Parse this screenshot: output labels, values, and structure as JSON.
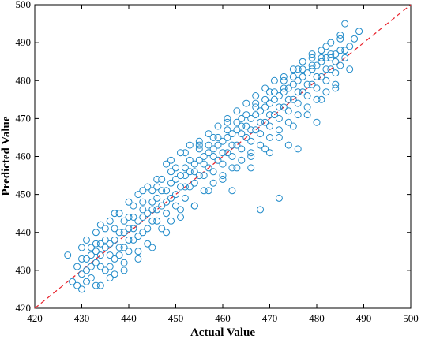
{
  "chart_data": {
    "type": "scatter",
    "xlabel": "Actual Value",
    "ylabel": "Predicted Value",
    "xlim": [
      420,
      500
    ],
    "ylim": [
      420,
      500
    ],
    "x_ticks": [
      420,
      430,
      440,
      450,
      460,
      470,
      480,
      490,
      500
    ],
    "y_ticks": [
      420,
      430,
      440,
      450,
      460,
      470,
      480,
      490,
      500
    ],
    "grid": false,
    "legend": "none",
    "reference_line": {
      "from": [
        420,
        420
      ],
      "to": [
        500,
        500
      ],
      "style": "dashed",
      "color": "#e8202a"
    },
    "marker": {
      "shape": "open-circle",
      "color": "#1f8ac9"
    },
    "series": [
      {
        "points": [
          [
            427,
            434
          ],
          [
            428,
            427
          ],
          [
            429,
            426
          ],
          [
            430,
            433
          ],
          [
            430,
            429
          ],
          [
            431,
            438
          ],
          [
            431,
            430
          ],
          [
            432,
            436
          ],
          [
            432,
            428
          ],
          [
            433,
            440
          ],
          [
            433,
            432
          ],
          [
            434,
            426
          ],
          [
            434,
            437
          ],
          [
            435,
            441
          ],
          [
            435,
            430
          ],
          [
            436,
            434
          ],
          [
            436,
            443
          ],
          [
            437,
            438
          ],
          [
            437,
            429
          ],
          [
            438,
            445
          ],
          [
            438,
            440
          ],
          [
            439,
            436
          ],
          [
            439,
            432
          ],
          [
            440,
            444
          ],
          [
            440,
            438
          ],
          [
            441,
            447
          ],
          [
            441,
            441
          ],
          [
            442,
            435
          ],
          [
            442,
            450
          ],
          [
            443,
            446
          ],
          [
            443,
            440
          ],
          [
            444,
            452
          ],
          [
            444,
            437
          ],
          [
            445,
            448
          ],
          [
            445,
            443
          ],
          [
            446,
            454
          ],
          [
            446,
            446
          ],
          [
            447,
            441
          ],
          [
            447,
            451
          ],
          [
            448,
            458
          ],
          [
            448,
            448
          ],
          [
            449,
            443
          ],
          [
            449,
            453
          ],
          [
            450,
            457
          ],
          [
            450,
            450
          ],
          [
            451,
            446
          ],
          [
            451,
            461
          ],
          [
            452,
            455
          ],
          [
            452,
            449
          ],
          [
            453,
            463
          ],
          [
            453,
            452
          ],
          [
            454,
            447
          ],
          [
            454,
            458
          ],
          [
            455,
            464
          ],
          [
            455,
            455
          ],
          [
            456,
            451
          ],
          [
            456,
            460
          ],
          [
            457,
            466
          ],
          [
            457,
            457
          ],
          [
            458,
            453
          ],
          [
            458,
            462
          ],
          [
            459,
            468
          ],
          [
            459,
            459
          ],
          [
            460,
            455
          ],
          [
            460,
            464
          ],
          [
            461,
            470
          ],
          [
            461,
            461
          ],
          [
            462,
            457
          ],
          [
            462,
            466
          ],
          [
            463,
            472
          ],
          [
            463,
            463
          ],
          [
            464,
            459
          ],
          [
            464,
            468
          ],
          [
            465,
            474
          ],
          [
            465,
            465
          ],
          [
            466,
            461
          ],
          [
            466,
            470
          ],
          [
            467,
            476
          ],
          [
            467,
            467
          ],
          [
            468,
            463
          ],
          [
            468,
            472
          ],
          [
            469,
            478
          ],
          [
            469,
            469
          ],
          [
            470,
            465
          ],
          [
            470,
            474
          ],
          [
            471,
            480
          ],
          [
            471,
            471
          ],
          [
            472,
            467
          ],
          [
            472,
            476
          ],
          [
            473,
            481
          ],
          [
            473,
            473
          ],
          [
            474,
            469
          ],
          [
            474,
            478
          ],
          [
            475,
            483
          ],
          [
            475,
            475
          ],
          [
            476,
            471
          ],
          [
            476,
            480
          ],
          [
            477,
            485
          ],
          [
            477,
            477
          ],
          [
            478,
            473
          ],
          [
            478,
            482
          ],
          [
            479,
            486
          ],
          [
            479,
            479
          ],
          [
            480,
            475
          ],
          [
            480,
            484
          ],
          [
            481,
            488
          ],
          [
            481,
            481
          ],
          [
            482,
            477
          ],
          [
            482,
            486
          ],
          [
            483,
            490
          ],
          [
            483,
            483
          ],
          [
            484,
            479
          ],
          [
            484,
            487
          ],
          [
            485,
            491
          ],
          [
            485,
            484
          ],
          [
            486,
            495
          ],
          [
            486,
            486
          ],
          [
            487,
            489
          ],
          [
            488,
            491
          ],
          [
            489,
            493
          ],
          [
            431,
            433
          ],
          [
            433,
            435
          ],
          [
            435,
            436
          ],
          [
            437,
            433
          ],
          [
            439,
            440
          ],
          [
            441,
            438
          ],
          [
            443,
            444
          ],
          [
            445,
            446
          ],
          [
            447,
            447
          ],
          [
            449,
            449
          ],
          [
            451,
            452
          ],
          [
            453,
            456
          ],
          [
            455,
            459
          ],
          [
            457,
            461
          ],
          [
            459,
            463
          ],
          [
            461,
            465
          ],
          [
            463,
            467
          ],
          [
            465,
            468
          ],
          [
            467,
            471
          ],
          [
            469,
            473
          ],
          [
            471,
            475
          ],
          [
            473,
            477
          ],
          [
            475,
            479
          ],
          [
            477,
            481
          ],
          [
            479,
            483
          ],
          [
            481,
            485
          ],
          [
            483,
            486
          ],
          [
            485,
            488
          ],
          [
            472,
            449
          ],
          [
            468,
            446
          ],
          [
            466,
            457
          ],
          [
            462,
            451
          ],
          [
            476,
            462
          ],
          [
            480,
            469
          ],
          [
            474,
            463
          ],
          [
            470,
            461
          ],
          [
            432,
            431
          ],
          [
            434,
            434
          ],
          [
            436,
            437
          ],
          [
            438,
            436
          ],
          [
            440,
            441
          ],
          [
            442,
            443
          ],
          [
            444,
            445
          ],
          [
            446,
            449
          ],
          [
            448,
            451
          ],
          [
            450,
            454
          ],
          [
            452,
            457
          ],
          [
            454,
            456
          ],
          [
            456,
            458
          ],
          [
            458,
            460
          ],
          [
            460,
            461
          ],
          [
            462,
            463
          ],
          [
            464,
            466
          ],
          [
            466,
            467
          ],
          [
            468,
            469
          ],
          [
            470,
            471
          ],
          [
            472,
            473
          ],
          [
            474,
            475
          ],
          [
            476,
            477
          ],
          [
            478,
            479
          ],
          [
            480,
            481
          ],
          [
            482,
            483
          ],
          [
            484,
            485
          ],
          [
            486,
            488
          ],
          [
            429,
            431
          ],
          [
            430,
            436
          ],
          [
            431,
            427
          ],
          [
            432,
            434
          ],
          [
            433,
            437
          ],
          [
            434,
            431
          ],
          [
            435,
            438
          ],
          [
            436,
            431
          ],
          [
            437,
            441
          ],
          [
            438,
            434
          ],
          [
            439,
            443
          ],
          [
            440,
            435
          ],
          [
            441,
            444
          ],
          [
            442,
            439
          ],
          [
            443,
            448
          ],
          [
            444,
            441
          ],
          [
            445,
            451
          ],
          [
            446,
            443
          ],
          [
            447,
            454
          ],
          [
            448,
            445
          ],
          [
            449,
            456
          ],
          [
            450,
            447
          ],
          [
            451,
            455
          ],
          [
            452,
            452
          ],
          [
            453,
            459
          ],
          [
            454,
            453
          ],
          [
            455,
            462
          ],
          [
            456,
            455
          ],
          [
            457,
            463
          ],
          [
            458,
            456
          ],
          [
            459,
            465
          ],
          [
            460,
            458
          ],
          [
            461,
            467
          ],
          [
            462,
            460
          ],
          [
            463,
            469
          ],
          [
            464,
            462
          ],
          [
            465,
            471
          ],
          [
            466,
            464
          ],
          [
            467,
            473
          ],
          [
            468,
            466
          ],
          [
            469,
            475
          ],
          [
            470,
            468
          ],
          [
            471,
            477
          ],
          [
            472,
            470
          ],
          [
            473,
            478
          ],
          [
            474,
            472
          ],
          [
            475,
            481
          ],
          [
            476,
            474
          ],
          [
            477,
            483
          ],
          [
            478,
            476
          ],
          [
            479,
            484
          ],
          [
            480,
            478
          ],
          [
            481,
            486
          ],
          [
            482,
            480
          ],
          [
            483,
            487
          ],
          [
            484,
            482
          ],
          [
            430,
            425
          ],
          [
            433,
            426
          ],
          [
            436,
            428
          ],
          [
            439,
            430
          ],
          [
            442,
            433
          ],
          [
            445,
            436
          ],
          [
            448,
            440
          ],
          [
            451,
            444
          ],
          [
            454,
            447
          ],
          [
            457,
            451
          ],
          [
            460,
            454
          ],
          [
            463,
            457
          ],
          [
            466,
            460
          ],
          [
            469,
            462
          ],
          [
            472,
            465
          ],
          [
            475,
            468
          ],
          [
            478,
            471
          ],
          [
            481,
            475
          ],
          [
            484,
            478
          ],
          [
            487,
            483
          ],
          [
            434,
            442
          ],
          [
            437,
            445
          ],
          [
            440,
            448
          ],
          [
            443,
            451
          ],
          [
            446,
            452
          ],
          [
            449,
            459
          ],
          [
            452,
            461
          ],
          [
            455,
            463
          ],
          [
            458,
            465
          ],
          [
            461,
            469
          ],
          [
            464,
            470
          ],
          [
            467,
            474
          ],
          [
            470,
            477
          ],
          [
            473,
            480
          ],
          [
            476,
            483
          ],
          [
            479,
            487
          ],
          [
            482,
            489
          ],
          [
            485,
            492
          ]
        ]
      }
    ]
  }
}
